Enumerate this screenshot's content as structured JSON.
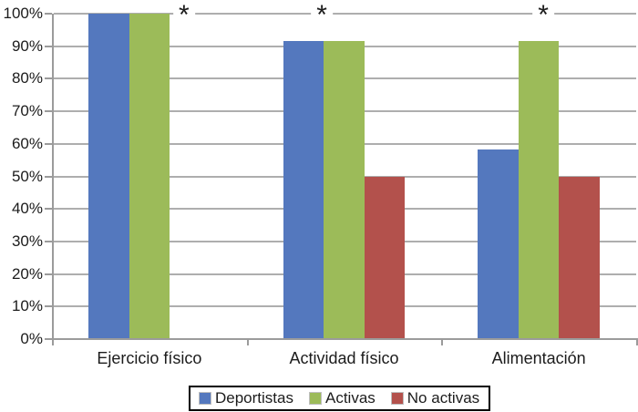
{
  "chart_data": {
    "type": "bar",
    "title": "",
    "xlabel": "",
    "ylabel": "",
    "categories": [
      "Ejercicio físico",
      "Actividad físico",
      "Alimentación"
    ],
    "series": [
      {
        "name": "Deportistas",
        "color": "#5478BE",
        "values": [
          100,
          91.7,
          58.3
        ]
      },
      {
        "name": "Activas",
        "color": "#9CBB59",
        "values": [
          100,
          91.7,
          91.7
        ]
      },
      {
        "name": "No activas",
        "color": "#B3514C",
        "values": [
          0,
          50,
          50
        ]
      }
    ],
    "ylim": [
      0,
      100
    ],
    "ytick_step": 10,
    "ytick_labels": [
      "0%",
      "10%",
      "20%",
      "30%",
      "40%",
      "50%",
      "60%",
      "70%",
      "80%",
      "90%",
      "100%"
    ],
    "grid": true,
    "legend_position": "bottom-center",
    "annotations": [
      {
        "symbol": "*",
        "category": "Ejercicio físico",
        "y_value": 100,
        "x_frac": 0.226
      },
      {
        "symbol": "*",
        "category": "Actividad físico",
        "y_value": 100,
        "x_frac": 0.462
      },
      {
        "symbol": "*",
        "category": "Alimentación",
        "y_value": 100,
        "x_frac": 0.841
      }
    ],
    "colors": {
      "gridline": "#AEAEAE",
      "axis": "#9B9B9B",
      "text": "#1C1C1C",
      "legend_border": "#000000",
      "background": "#FFFFFF"
    }
  }
}
